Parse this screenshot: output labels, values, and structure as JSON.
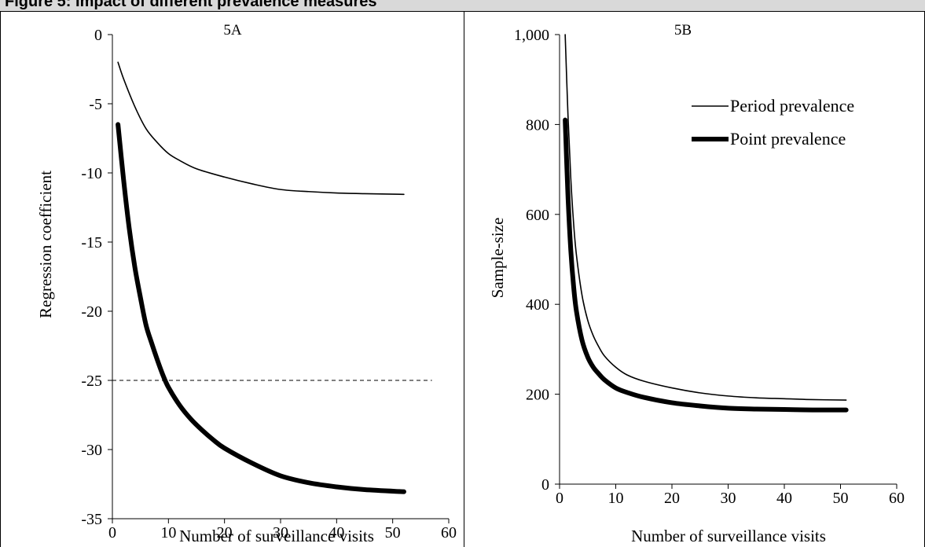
{
  "figure": {
    "header": "Figure 5: Impact of different prevalence measures"
  },
  "chart_data": [
    {
      "type": "line",
      "panel_label": "5A",
      "xlabel": "Number of surveillance visits",
      "ylabel": "Regression coefficient",
      "xlim": [
        0,
        60
      ],
      "ylim": [
        -35,
        0
      ],
      "x_ticks": [
        0,
        10,
        20,
        30,
        40,
        50,
        60
      ],
      "y_ticks": [
        0,
        -5,
        -10,
        -15,
        -20,
        -25,
        -30,
        -35
      ],
      "y_tick_labels": [
        "0",
        "-5",
        "-10",
        "-15",
        "-20",
        "-25",
        "-30",
        "-35"
      ],
      "grid": false,
      "reference_line": {
        "y": -25,
        "x_range": [
          0,
          57
        ],
        "style": "dashed"
      },
      "series": [
        {
          "color": "#000000",
          "weight": "thin",
          "x": [
            1,
            2,
            4,
            6,
            8,
            10,
            12,
            15,
            20,
            25,
            30,
            35,
            40,
            45,
            52
          ],
          "y": [
            -2,
            -3.2,
            -5.2,
            -6.8,
            -7.8,
            -8.6,
            -9.1,
            -9.7,
            -10.3,
            -10.8,
            -11.2,
            -11.35,
            -11.45,
            -11.5,
            -11.55
          ]
        },
        {
          "color": "#000000",
          "weight": "thick",
          "x": [
            1,
            2,
            3,
            4,
            5,
            6,
            7,
            8,
            9,
            10,
            12,
            14,
            16,
            18,
            20,
            25,
            30,
            35,
            40,
            45,
            52
          ],
          "y": [
            -6.5,
            -10.5,
            -14,
            -16.8,
            -19,
            -21,
            -22.3,
            -23.5,
            -24.6,
            -25.5,
            -26.8,
            -27.8,
            -28.6,
            -29.3,
            -29.9,
            -31,
            -31.9,
            -32.4,
            -32.7,
            -32.9,
            -33.05
          ]
        }
      ]
    },
    {
      "type": "line",
      "panel_label": "5B",
      "xlabel": "Number of surveillance visits",
      "ylabel": "Sample-size",
      "xlim": [
        0,
        60
      ],
      "ylim": [
        0,
        1000
      ],
      "x_ticks": [
        0,
        10,
        20,
        30,
        40,
        50,
        60
      ],
      "y_ticks": [
        0,
        200,
        400,
        600,
        800,
        1000
      ],
      "y_tick_labels": [
        "0",
        "200",
        "400",
        "600",
        "800",
        "1,000"
      ],
      "grid": false,
      "legend": {
        "placement": "top-right"
      },
      "series": [
        {
          "name": "Period prevalence",
          "color": "#000000",
          "weight": "thin",
          "x": [
            1,
            1.5,
            2,
            2.5,
            3,
            4,
            5,
            6,
            7,
            8,
            10,
            12,
            15,
            20,
            25,
            30,
            35,
            40,
            45,
            51
          ],
          "y": [
            1000,
            820,
            680,
            580,
            510,
            420,
            365,
            330,
            305,
            285,
            260,
            243,
            229,
            214,
            203,
            196,
            192,
            190,
            188,
            187
          ]
        },
        {
          "name": "Point prevalence",
          "color": "#000000",
          "weight": "thick",
          "x": [
            1,
            1.5,
            2,
            2.5,
            3,
            4,
            5,
            6,
            7,
            8,
            10,
            12,
            15,
            20,
            25,
            30,
            35,
            40,
            45,
            51
          ],
          "y": [
            810,
            640,
            520,
            440,
            385,
            320,
            283,
            260,
            245,
            232,
            214,
            204,
            193,
            181,
            174,
            169,
            167,
            166,
            165,
            165
          ]
        }
      ]
    }
  ]
}
